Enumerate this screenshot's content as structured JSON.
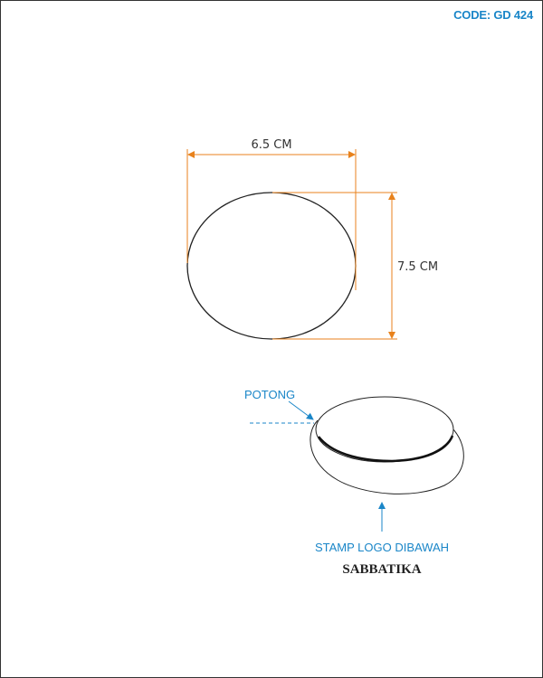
{
  "header": {
    "code": "CODE: GD 424"
  },
  "dimensions": {
    "width_label": "6.5 CM",
    "height_label": "7.5 CM"
  },
  "annotations": {
    "cut_label": "POTONG",
    "stamp_label": "STAMP LOGO DIBAWAH",
    "brand": "SABBATIKA"
  },
  "colors": {
    "dimension": "#e8821c",
    "annotation": "#1a86c8",
    "outline": "#222222"
  }
}
